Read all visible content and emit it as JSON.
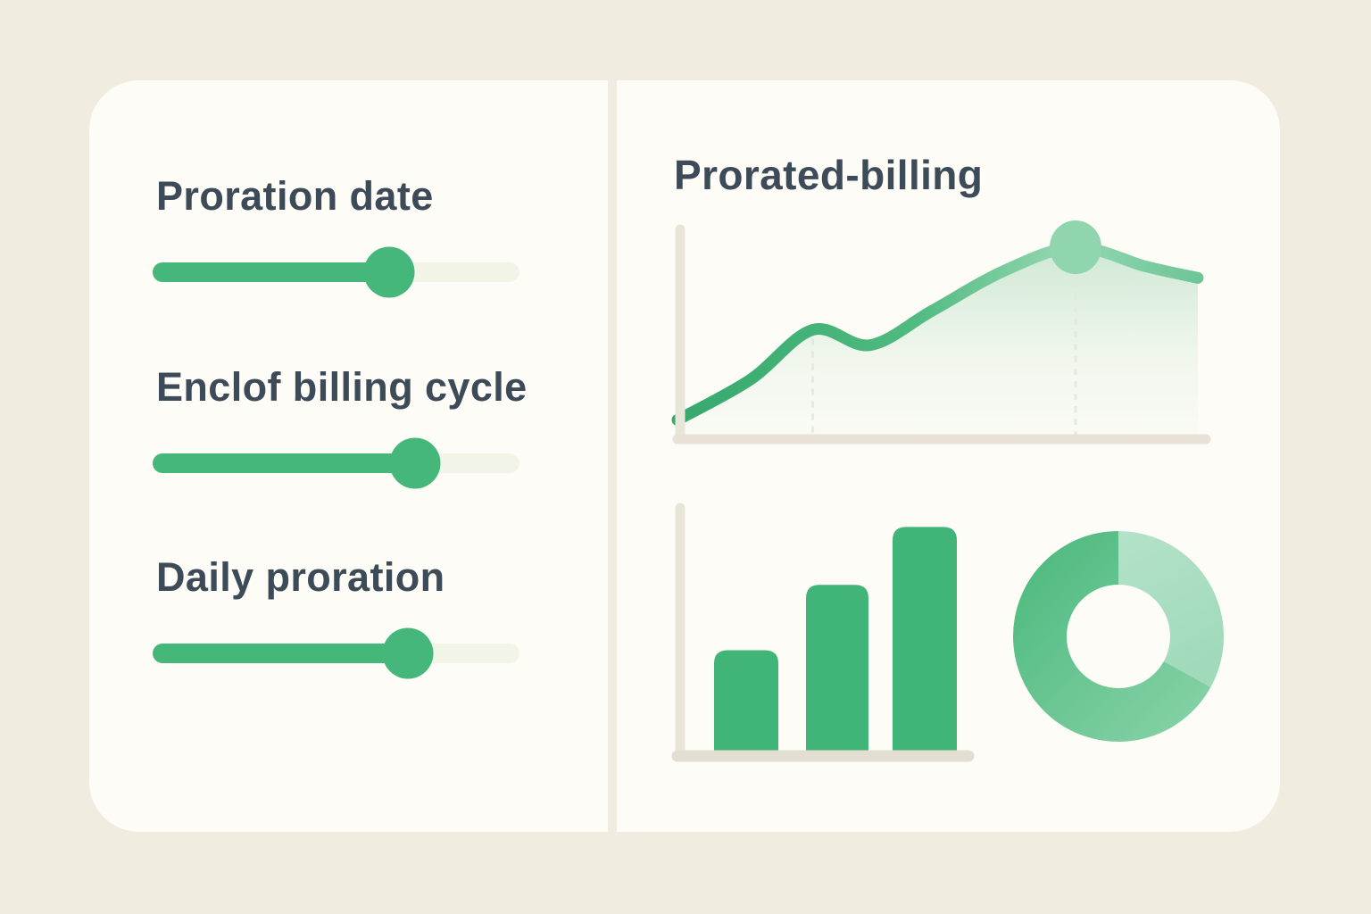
{
  "canvas": {
    "background": "#f0ecdf",
    "panel_background": "#fdfcf6"
  },
  "colors": {
    "accent_green": "#45b77a",
    "accent_green_light": "#abdfc3",
    "track_empty": "#f1f4e6",
    "text_dark": "#3d4a58",
    "axis": "#e7e2d5",
    "peak_marker": "#90d5ad"
  },
  "left_panel": {
    "sliders": [
      {
        "label": "Proration date",
        "value_pct": 64.5
      },
      {
        "label": "Enclof billing cycle",
        "value_pct": 71.5
      },
      {
        "label": "Daily proration",
        "value_pct": 69.5
      }
    ]
  },
  "right_panel": {
    "title": "Prorated-billing"
  },
  "chart_data": [
    {
      "type": "area",
      "title": "Prorated-billing",
      "xlabel": "",
      "ylabel": "",
      "axis_tick_labels_visible": false,
      "ylim": [
        0,
        100
      ],
      "points": [
        [
          0,
          10
        ],
        [
          0.14,
          31
        ],
        [
          0.26,
          57
        ],
        [
          0.37,
          49
        ],
        [
          0.49,
          67
        ],
        [
          0.63,
          88
        ],
        [
          0.765,
          100
        ],
        [
          0.9,
          90
        ],
        [
          1,
          84
        ]
      ],
      "marker_at_x": 0.765,
      "guide_lines_x": [
        0.26,
        0.765
      ]
    },
    {
      "type": "bar",
      "categories": [
        "",
        "",
        ""
      ],
      "values_pct": [
        42,
        68,
        91
      ],
      "axis_tick_labels_visible": false
    },
    {
      "type": "donut",
      "slices": [
        {
          "name": "light-segment",
          "pct": 33
        },
        {
          "name": "dark-segment",
          "pct": 67
        }
      ],
      "start_angle_deg": 0
    }
  ]
}
